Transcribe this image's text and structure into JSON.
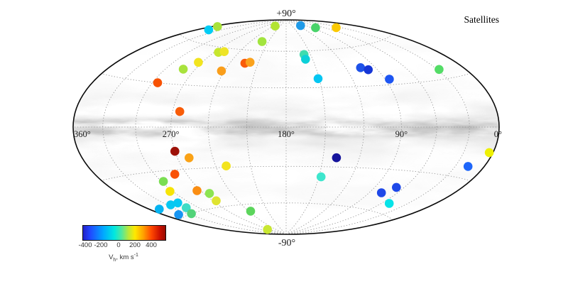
{
  "title": "Satellites",
  "map": {
    "pole_labels": {
      "top": "+90°",
      "bottom": "-90°"
    },
    "lon_labels": [
      {
        "label": "360°",
        "l": 360
      },
      {
        "label": "270°",
        "l": 270
      },
      {
        "label": "180°",
        "l": 180
      },
      {
        "label": "90°",
        "l": 90
      },
      {
        "label": "0°",
        "l": 0
      }
    ],
    "background": "milky-way-extinction-grayscale"
  },
  "colorbar": {
    "ticks": [
      "-400",
      "-200",
      "0",
      "200",
      "400"
    ],
    "tick_values": [
      -400,
      -200,
      0,
      200,
      400
    ],
    "label_v": "V",
    "label_sub": "h",
    "label_rest": ", km s",
    "label_sup": "-1",
    "vmin": -440,
    "vmax": 520
  },
  "chart_data": {
    "type": "scatter",
    "projection": "hammer",
    "title": "Satellites",
    "xlabel_units": "galactic longitude l, deg (360 left to 0 right)",
    "ylabel_units": "galactic latitude b, deg (+90 top, -90 bottom)",
    "graticule": {
      "lon_step": 30,
      "lat_step": 30,
      "style": "dotted"
    },
    "color_encoding": "heliocentric velocity V_h, km/s (jet colormap)",
    "points": [
      {
        "l": 346,
        "b": 68,
        "v": -150,
        "color": "#00ccf5"
      },
      {
        "l": 354,
        "b": 71,
        "v": 80,
        "color": "#a9e23b"
      },
      {
        "l": 233,
        "b": 83,
        "v": 70,
        "color": "#b2e432"
      },
      {
        "l": 221,
        "b": 68,
        "v": 60,
        "color": "#a2e43e"
      },
      {
        "l": 265,
        "b": 56,
        "v": 90,
        "color": "#c6e62e"
      },
      {
        "l": 259,
        "b": 57,
        "v": 140,
        "color": "#eee426"
      },
      {
        "l": 274,
        "b": 47,
        "v": 150,
        "color": "#f2e41e"
      },
      {
        "l": 224,
        "b": 49,
        "v": 300,
        "color": "#f95c09"
      },
      {
        "l": 219,
        "b": 50,
        "v": 230,
        "color": "#faa21c"
      },
      {
        "l": 282,
        "b": 41,
        "v": 60,
        "color": "#a8e23c"
      },
      {
        "l": 243,
        "b": 42,
        "v": 240,
        "color": "#fa9e1a"
      },
      {
        "l": 295,
        "b": 30,
        "v": 320,
        "color": "#f75203"
      },
      {
        "l": 264,
        "b": 11,
        "v": 300,
        "color": "#f85c08"
      },
      {
        "l": 109,
        "b": 83,
        "v": -220,
        "color": "#1f9ae8"
      },
      {
        "l": 80,
        "b": 79,
        "v": -20,
        "color": "#49d36a"
      },
      {
        "l": 38,
        "b": 75,
        "v": 190,
        "color": "#fbc903"
      },
      {
        "l": 158,
        "b": 57,
        "v": -60,
        "color": "#3fdcae"
      },
      {
        "l": 158,
        "b": 53,
        "v": -120,
        "color": "#0cd0d8"
      },
      {
        "l": 151,
        "b": 37,
        "v": -150,
        "color": "#05c6f2"
      },
      {
        "l": 105,
        "b": 44,
        "v": -290,
        "color": "#1e52e8"
      },
      {
        "l": 99,
        "b": 42,
        "v": -320,
        "color": "#1636d6"
      },
      {
        "l": 86,
        "b": 34,
        "v": -290,
        "color": "#1d55f2"
      },
      {
        "l": 28,
        "b": 36,
        "v": 0,
        "color": "#53dc66"
      },
      {
        "l": 270,
        "b": -17,
        "v": 470,
        "color": "#9d1108"
      },
      {
        "l": 260,
        "b": -22,
        "v": 230,
        "color": "#faa216"
      },
      {
        "l": 231,
        "b": -29,
        "v": 150,
        "color": "#f3e41e"
      },
      {
        "l": 281,
        "b": -33,
        "v": 310,
        "color": "#f95207"
      },
      {
        "l": 298,
        "b": -37,
        "v": 50,
        "color": "#7ade52"
      },
      {
        "l": 303,
        "b": -44,
        "v": 150,
        "color": "#f6e406"
      },
      {
        "l": 274,
        "b": -46,
        "v": 260,
        "color": "#fa8d12"
      },
      {
        "l": 264,
        "b": -49,
        "v": 50,
        "color": "#8de452"
      },
      {
        "l": 266,
        "b": -55,
        "v": 120,
        "color": "#dfe431"
      },
      {
        "l": 326,
        "b": -52,
        "v": -150,
        "color": "#06c8f2"
      },
      {
        "l": 314,
        "b": -52,
        "v": -150,
        "color": "#06c8f2"
      },
      {
        "l": 315,
        "b": -56,
        "v": -80,
        "color": "#3edcc6"
      },
      {
        "l": 343,
        "b": -58,
        "v": -220,
        "color": "#1795f2"
      },
      {
        "l": 325,
        "b": -60,
        "v": -20,
        "color": "#52d379"
      },
      {
        "l": 349,
        "b": -52,
        "v": -180,
        "color": "#05b4f2"
      },
      {
        "l": 237,
        "b": -66,
        "v": 0,
        "color": "#5cd55c"
      },
      {
        "l": 277,
        "b": -83,
        "v": 110,
        "color": "#c9e732"
      },
      {
        "l": 139,
        "b": -23,
        "v": -420,
        "color": "#15149c"
      },
      {
        "l": 148,
        "b": -38,
        "v": -80,
        "color": "#3ee6cd"
      },
      {
        "l": 77,
        "b": -47,
        "v": -290,
        "color": "#1e48e8"
      },
      {
        "l": 68,
        "b": -42,
        "v": -290,
        "color": "#1e48e8"
      },
      {
        "l": 51,
        "b": -53,
        "v": -140,
        "color": "#06e3e8"
      },
      {
        "l": 4,
        "b": -14,
        "v": 150,
        "color": "#eef003"
      },
      {
        "l": 17,
        "b": -23,
        "v": -260,
        "color": "#1e66fa"
      }
    ]
  }
}
